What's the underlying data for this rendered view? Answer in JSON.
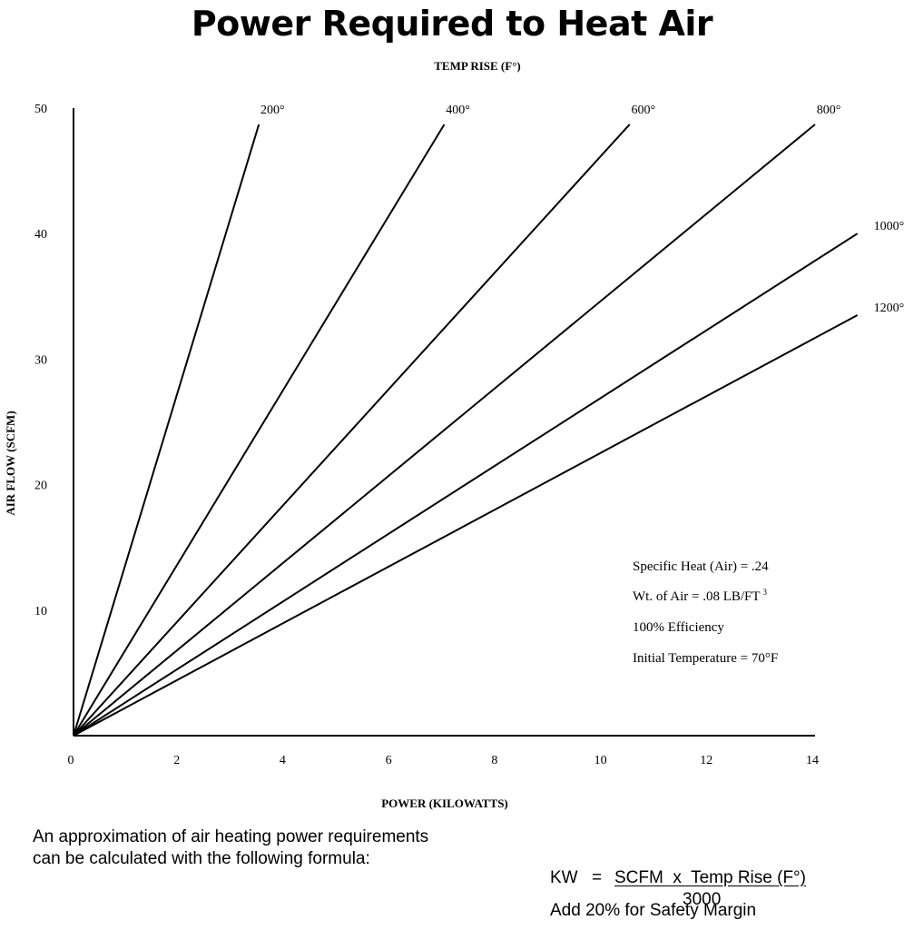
{
  "chart_data": {
    "type": "line",
    "title": "Power Required to Heat Air",
    "top_label": "TEMP RISE (F°)",
    "xlabel": "POWER (KILOWATTS)",
    "ylabel": "AIR FLOW (SCFM)",
    "xlim": [
      0,
      14
    ],
    "ylim": [
      0,
      50
    ],
    "x_ticks": [
      "0",
      "2",
      "4",
      "6",
      "8",
      "10",
      "12",
      "14"
    ],
    "y_ticks": [
      "10",
      "20",
      "30",
      "40",
      "50"
    ],
    "grid": false,
    "series": [
      {
        "name": "200°",
        "x": [
          0,
          3.5
        ],
        "y": [
          0,
          48.7
        ]
      },
      {
        "name": "400°",
        "x": [
          0,
          7.0
        ],
        "y": [
          0,
          48.7
        ]
      },
      {
        "name": "600°",
        "x": [
          0,
          10.5
        ],
        "y": [
          0,
          48.7
        ]
      },
      {
        "name": "800°",
        "x": [
          0,
          14.0
        ],
        "y": [
          0,
          48.7
        ]
      },
      {
        "name": "1000°",
        "x": [
          0,
          14.8
        ],
        "y": [
          0,
          40.0
        ]
      },
      {
        "name": "1200°",
        "x": [
          0,
          14.8
        ],
        "y": [
          0,
          33.5
        ]
      }
    ],
    "annotations": [
      "Specific Heat (Air) = .24",
      "Wt. of Air = .08 LB/FT",
      "100% Efficiency",
      "Initial Temperature = 70°F"
    ],
    "annotation_superscript": "3"
  },
  "footer": {
    "line1": "An approximation of air heating power requirements",
    "line2": "can be calculated with the following formula:",
    "formula_lhs": "KW",
    "formula_eq": "=",
    "formula_numerator": "SCFM  x  Temp Rise (F°)",
    "formula_denominator": "3000",
    "note": "Add 20% for Safety Margin"
  }
}
